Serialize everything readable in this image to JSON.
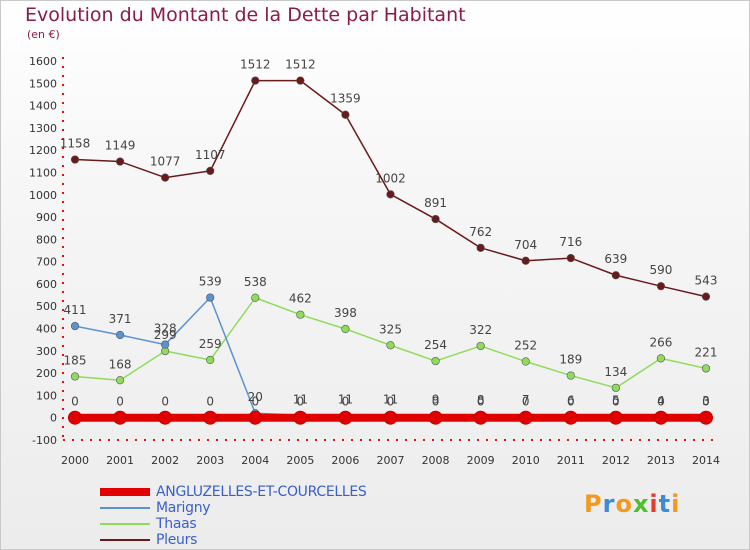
{
  "chart_data": {
    "type": "line",
    "title": "Evolution du Montant de la Dette par Habitant",
    "subtitle": "(en €)",
    "xlabel": "",
    "ylabel": "",
    "x": [
      "2000",
      "2001",
      "2002",
      "2003",
      "2004",
      "2005",
      "2006",
      "2007",
      "2008",
      "2009",
      "2010",
      "2011",
      "2012",
      "2013",
      "2014"
    ],
    "ylim": [
      -100,
      1600
    ],
    "yticks": [
      -100,
      0,
      100,
      200,
      300,
      400,
      500,
      600,
      700,
      800,
      900,
      1000,
      1100,
      1200,
      1300,
      1400,
      1500,
      1600
    ],
    "grid": false,
    "legend_position": "bottom-left",
    "series": [
      {
        "name": "ANGLUZELLES-ET-COURCELLES",
        "color": "#e00000",
        "values": [
          0,
          0,
          0,
          0,
          0,
          0,
          0,
          0,
          0,
          0,
          0,
          0,
          0,
          0,
          0
        ],
        "labels": [
          "0",
          "0",
          "0",
          "0",
          "0",
          "0",
          "0",
          "0",
          "0",
          "0",
          "0",
          "0",
          "0",
          "0",
          "0"
        ]
      },
      {
        "name": "Marigny",
        "color": "#5b93d2",
        "values": [
          411,
          371,
          328,
          539,
          20,
          11,
          11,
          11,
          9,
          8,
          7,
          6,
          5,
          4,
          3
        ],
        "labels": [
          "411",
          "371",
          "328",
          "539",
          "20",
          "11",
          "11",
          "11",
          "9",
          "8",
          "7",
          "6",
          "5",
          "4",
          "3"
        ]
      },
      {
        "name": "Thaas",
        "color": "#8fdc5a",
        "values": [
          185,
          168,
          299,
          259,
          538,
          462,
          398,
          325,
          254,
          322,
          252,
          189,
          134,
          266,
          221
        ],
        "labels": [
          "185",
          "168",
          "299",
          "259",
          "538",
          "462",
          "398",
          "325",
          "254",
          "322",
          "252",
          "189",
          "134",
          "266",
          "221"
        ]
      },
      {
        "name": "Pleurs",
        "color": "#6a1a1a",
        "values": [
          1158,
          1149,
          1077,
          1107,
          1512,
          1512,
          1359,
          1002,
          891,
          762,
          704,
          716,
          639,
          590,
          543
        ],
        "labels": [
          "1158",
          "1149",
          "1077",
          "1107",
          "1512",
          "1512",
          "1359",
          "1002",
          "891",
          "762",
          "704",
          "716",
          "639",
          "590",
          "543"
        ]
      }
    ]
  },
  "logo": {
    "letters": [
      "P",
      "r",
      "o",
      "x",
      "i",
      "t",
      "i"
    ],
    "colors": [
      "#f39a1e",
      "#3d8ad6",
      "#f39a1e",
      "#4fbf2f",
      "#e33b2e",
      "#3d8ad6",
      "#f39a1e"
    ]
  }
}
